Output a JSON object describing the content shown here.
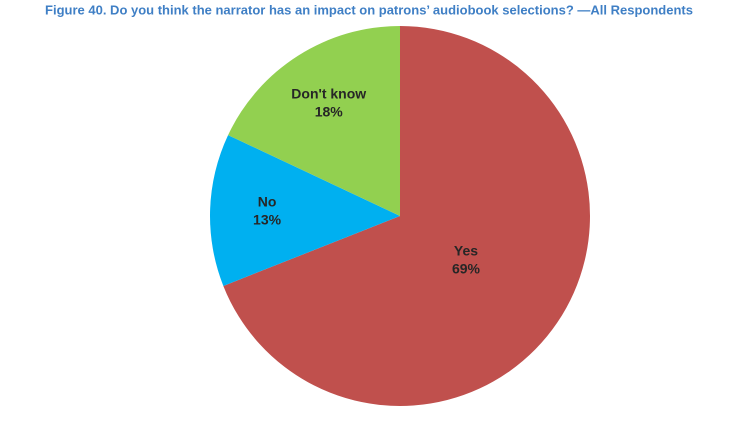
{
  "chart_data": {
    "type": "pie",
    "title": "Figure 40. Do you think the narrator has an impact on patrons’ audiobook selections? —All Respondents",
    "categories": [
      "Yes",
      "No",
      "Don't know"
    ],
    "values": [
      69,
      13,
      18
    ],
    "value_labels": [
      "69%",
      "13%",
      "18%"
    ],
    "colors": [
      "#c0504d",
      "#00b0f0",
      "#92d050"
    ]
  }
}
